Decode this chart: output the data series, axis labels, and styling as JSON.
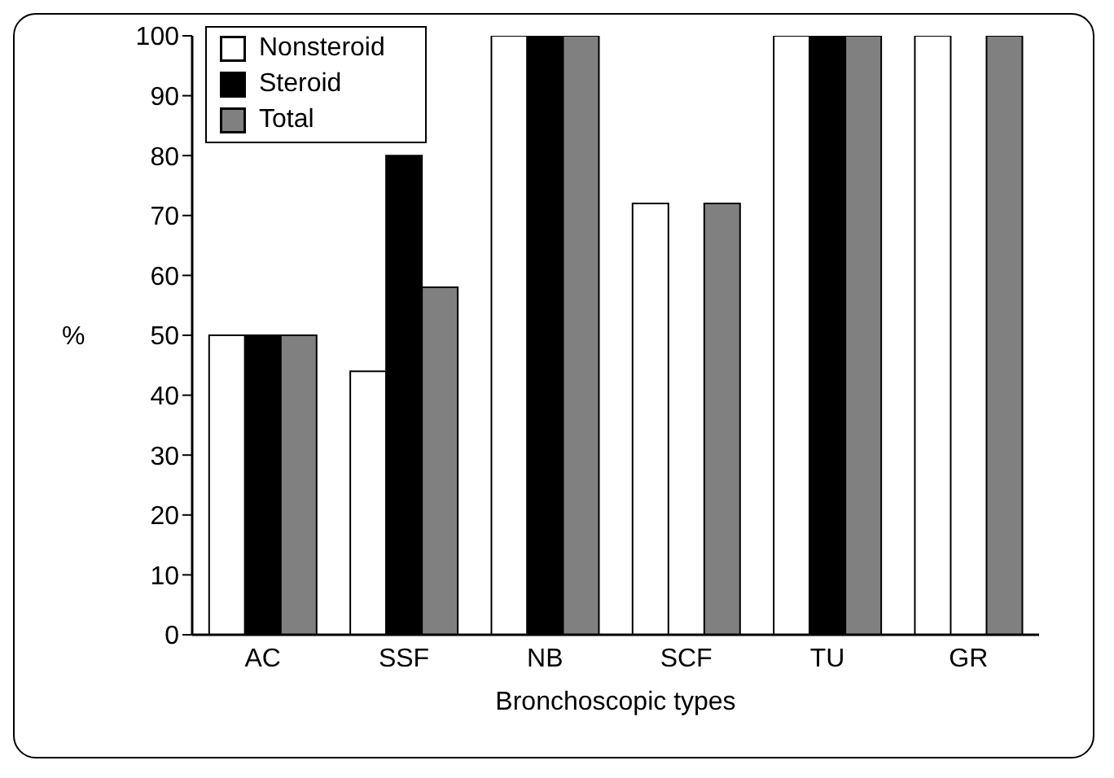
{
  "chart_data": {
    "type": "bar",
    "xlabel": "Bronchoscopic types",
    "ylabel": "%",
    "categories": [
      "AC",
      "SSF",
      "NB",
      "SCF",
      "TU",
      "GR"
    ],
    "series": [
      {
        "name": "Nonsteroid",
        "color": "#ffffff",
        "values": [
          50,
          44,
          100,
          72,
          100,
          100
        ]
      },
      {
        "name": "Steroid",
        "color": "#000000",
        "values": [
          50,
          80,
          100,
          0,
          100,
          0
        ]
      },
      {
        "name": "Total",
        "color": "#808080",
        "values": [
          50,
          58,
          100,
          72,
          100,
          100
        ]
      }
    ],
    "ylim": [
      0,
      100
    ],
    "yticks": [
      0,
      10,
      20,
      30,
      40,
      50,
      60,
      70,
      80,
      90,
      100
    ],
    "grid": false,
    "legend": "top left"
  }
}
